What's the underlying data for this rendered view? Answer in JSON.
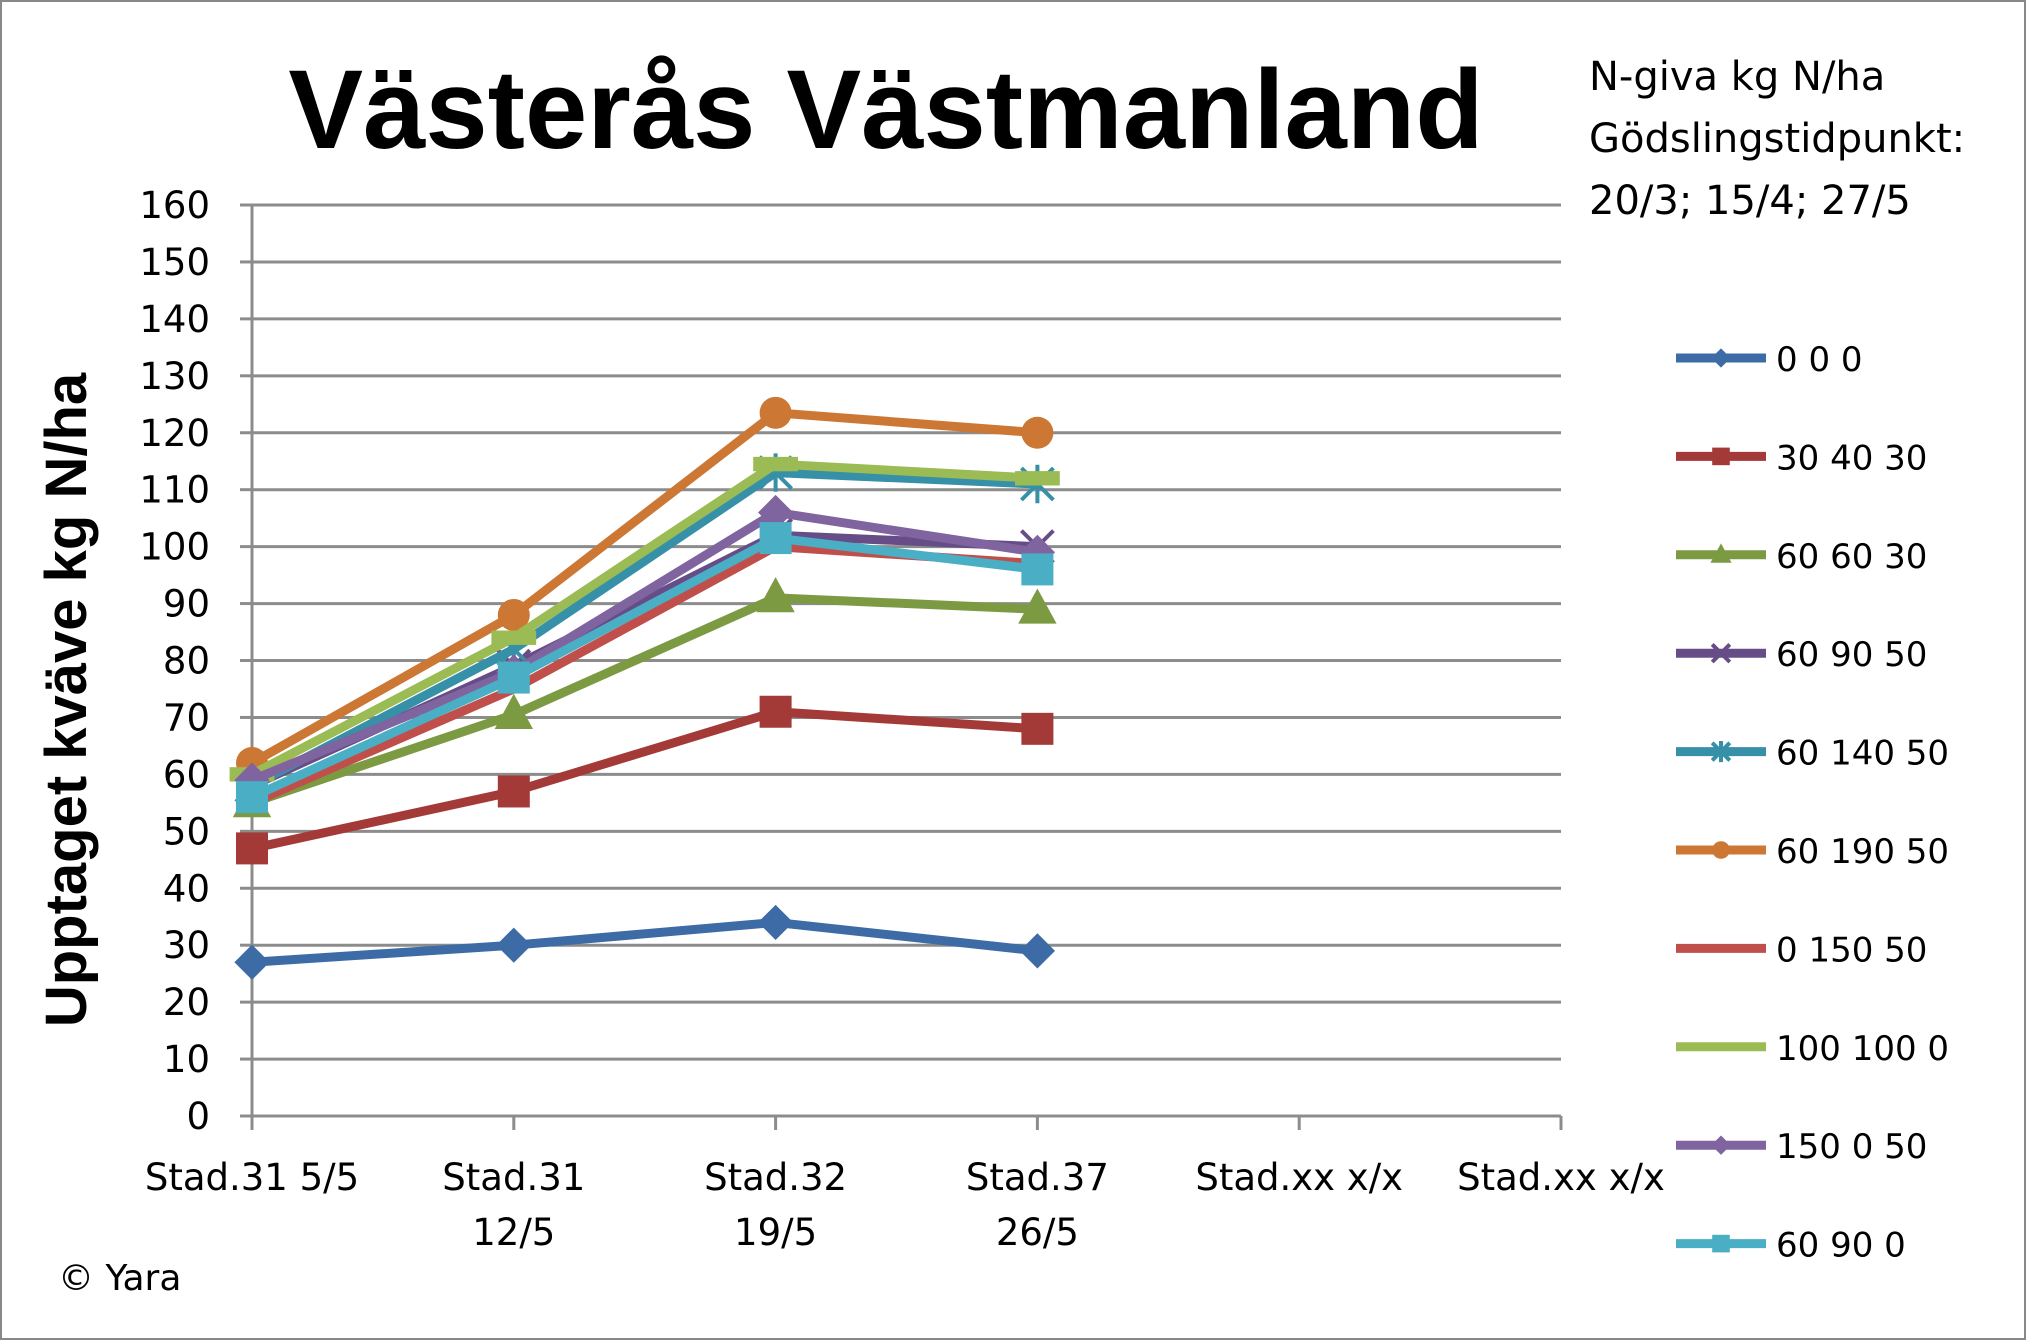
{
  "chart_data": {
    "type": "line",
    "title": "Västerås Västmanland",
    "annotation": [
      "N-giva kg N/ha",
      "Gödslingstidpunkt:",
      "20/3; 15/4; 27/5"
    ],
    "ylabel": "Upptaget kväve kg N/ha",
    "xlabel": "",
    "ylim": [
      0,
      160
    ],
    "ytick_step": 10,
    "grid": true,
    "legend_placement": "right",
    "copyright": "© Yara",
    "categories": [
      [
        "Stad.31 5/5"
      ],
      [
        "Stad.31",
        "12/5"
      ],
      [
        "Stad.32",
        "19/5"
      ],
      [
        "Stad.37",
        "26/5"
      ],
      [
        "Stad.xx x/x"
      ],
      [
        "Stad.xx x/x"
      ]
    ],
    "series": [
      {
        "name": "0 0 0",
        "color": "#3D6BA5",
        "marker": "diamond",
        "values": [
          27,
          30,
          34,
          29,
          null,
          null
        ]
      },
      {
        "name": "30 40 30",
        "color": "#A33A38",
        "marker": "square",
        "values": [
          47,
          57,
          71,
          68,
          null,
          null
        ]
      },
      {
        "name": "60 60 30",
        "color": "#7B9A41",
        "marker": "triangle",
        "values": [
          55,
          70.5,
          91,
          89,
          null,
          null
        ]
      },
      {
        "name": "60 90 50",
        "color": "#664D87",
        "marker": "x",
        "values": [
          58,
          79,
          102,
          100,
          null,
          null
        ]
      },
      {
        "name": "60 140 50",
        "color": "#3690A7",
        "marker": "star",
        "values": [
          58,
          82,
          113,
          111,
          null,
          null
        ]
      },
      {
        "name": "60 190 50",
        "color": "#CC7733",
        "marker": "circle",
        "values": [
          62,
          88,
          123.5,
          120,
          null,
          null
        ]
      },
      {
        "name": "0 150 50",
        "color": "#C04F4B",
        "marker": "none",
        "values": [
          55,
          75,
          100,
          97,
          null,
          null
        ]
      },
      {
        "name": "100 100 0",
        "color": "#9BBB55",
        "marker": "dash",
        "values": [
          60,
          84,
          114.5,
          112,
          null,
          null
        ]
      },
      {
        "name": "150 0 50",
        "color": "#7F64A0",
        "marker": "diamond",
        "values": [
          59,
          78,
          106,
          99,
          null,
          null
        ]
      },
      {
        "name": "60 90 0",
        "color": "#4AAEC5",
        "marker": "square",
        "values": [
          56,
          77,
          101.5,
          96,
          null,
          null
        ]
      }
    ]
  }
}
